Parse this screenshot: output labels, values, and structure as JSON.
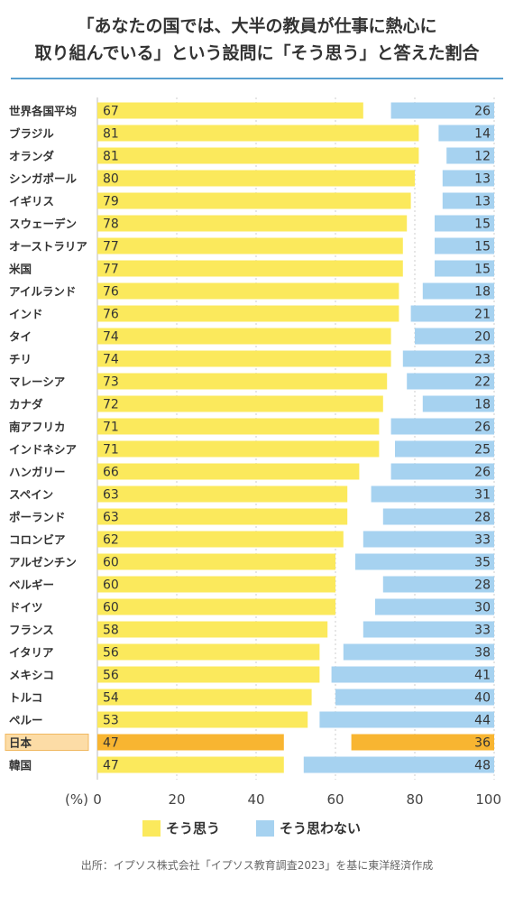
{
  "chart_data": {
    "type": "bar",
    "title_lines": [
      "「あなたの国では、大半の教員が仕事に熱心に",
      "取り組んでいる」という設問に「そう思う」と答えた割合"
    ],
    "categories": [
      "世界各国平均",
      "ブラジル",
      "オランダ",
      "シンガポール",
      "イギリス",
      "スウェーデン",
      "オーストラリア",
      "米国",
      "アイルランド",
      "インド",
      "タイ",
      "チリ",
      "マレーシア",
      "カナダ",
      "南アフリカ",
      "インドネシア",
      "ハンガリー",
      "スペイン",
      "ポーランド",
      "コロンビア",
      "アルゼンチン",
      "ベルギー",
      "ドイツ",
      "フランス",
      "イタリア",
      "メキシコ",
      "トルコ",
      "ペルー",
      "日本",
      "韓国"
    ],
    "series": [
      {
        "name": "そう思う",
        "values": [
          67,
          81,
          81,
          80,
          79,
          78,
          77,
          77,
          76,
          76,
          74,
          74,
          73,
          72,
          71,
          71,
          66,
          63,
          63,
          62,
          60,
          60,
          60,
          58,
          56,
          56,
          54,
          53,
          47,
          47
        ]
      },
      {
        "name": "そう思わない",
        "values": [
          26,
          14,
          12,
          13,
          13,
          15,
          15,
          15,
          18,
          21,
          20,
          23,
          22,
          18,
          26,
          25,
          26,
          31,
          28,
          33,
          35,
          28,
          30,
          33,
          38,
          41,
          40,
          44,
          36,
          48
        ]
      }
    ],
    "xaxis": {
      "unit_label": "(%)",
      "ticks": [
        0,
        20,
        40,
        60,
        80,
        100
      ],
      "range": [
        0,
        100
      ]
    },
    "highlight_category": "日本",
    "colors": {
      "agree": "#fbe95c",
      "disagree": "#a6d2f0",
      "agree_highlight": "#f8b531",
      "disagree_highlight": "#f8b531",
      "highlight_label_bg": "#fcdca6",
      "highlight_value_text": "#ffffff",
      "grid": "#cccccc",
      "title_rule": "#5aa0d0"
    },
    "source": "出所：イプソス株式会社「イプソス教育調査2023」を基に東洋経済作成"
  }
}
